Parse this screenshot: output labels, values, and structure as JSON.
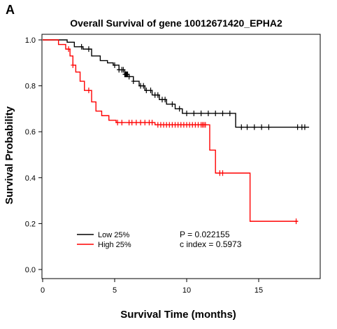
{
  "panel_label": "A",
  "chart_data": {
    "type": "line",
    "title": "Overall Survival of gene 10012671420_EPHA2",
    "xlabel": "Survival Time (months)",
    "ylabel": "Survival Probability",
    "xlim": [
      0,
      18.5
    ],
    "ylim": [
      0,
      1.0
    ],
    "x_ticks": [
      0,
      5,
      10,
      15
    ],
    "x_tick_labels": [
      "0",
      "5",
      "10",
      "15"
    ],
    "y_ticks": [
      0,
      0.2,
      0.4,
      0.6,
      0.8,
      1.0
    ],
    "y_tick_labels": [
      "0.0",
      "0.2",
      "0.4",
      "0.6",
      "0.8",
      "1.0"
    ],
    "grid": false,
    "legend_position": "bottom-left",
    "annotations": [
      "P = 0.022155",
      "c index = 0.5973"
    ],
    "series": [
      {
        "name": "Low 25%",
        "color": "#000000",
        "steps": [
          [
            0,
            1.0
          ],
          [
            1.7,
            0.99
          ],
          [
            2.2,
            0.97
          ],
          [
            2.8,
            0.96
          ],
          [
            3.4,
            0.93
          ],
          [
            4.0,
            0.91
          ],
          [
            4.5,
            0.9
          ],
          [
            4.9,
            0.89
          ],
          [
            5.3,
            0.87
          ],
          [
            5.7,
            0.85
          ],
          [
            6.0,
            0.84
          ],
          [
            6.3,
            0.82
          ],
          [
            6.7,
            0.8
          ],
          [
            7.1,
            0.78
          ],
          [
            7.6,
            0.76
          ],
          [
            8.1,
            0.74
          ],
          [
            8.6,
            0.72
          ],
          [
            9.2,
            0.7
          ],
          [
            9.7,
            0.68
          ],
          [
            13.4,
            0.62
          ],
          [
            18.5,
            0.62
          ]
        ],
        "censor_x": [
          2.7,
          3.2,
          5.0,
          5.3,
          5.5,
          5.6,
          5.7,
          5.75,
          5.8,
          5.85,
          5.9,
          6.0,
          6.3,
          6.8,
          7.0,
          7.2,
          7.5,
          7.8,
          8.0,
          8.3,
          8.5,
          9.0,
          9.5,
          10.0,
          10.5,
          11.0,
          11.5,
          12.0,
          12.5,
          13.0,
          13.8,
          14.2,
          14.7,
          15.2,
          15.7,
          17.7,
          18.0,
          18.2
        ]
      },
      {
        "name": "High 25%",
        "color": "#ff0000",
        "steps": [
          [
            0,
            1.0
          ],
          [
            1.1,
            0.98
          ],
          [
            1.6,
            0.96
          ],
          [
            1.9,
            0.93
          ],
          [
            2.1,
            0.89
          ],
          [
            2.3,
            0.86
          ],
          [
            2.6,
            0.82
          ],
          [
            2.9,
            0.78
          ],
          [
            3.4,
            0.73
          ],
          [
            3.7,
            0.69
          ],
          [
            4.1,
            0.67
          ],
          [
            4.6,
            0.65
          ],
          [
            5.1,
            0.64
          ],
          [
            7.8,
            0.63
          ],
          [
            11.6,
            0.52
          ],
          [
            12.0,
            0.42
          ],
          [
            14.4,
            0.21
          ],
          [
            17.7,
            0.21
          ]
        ],
        "censor_x": [
          1.8,
          2.1,
          3.2,
          5.2,
          5.5,
          6.0,
          6.2,
          6.5,
          6.8,
          7.1,
          7.4,
          7.6,
          8.0,
          8.2,
          8.4,
          8.6,
          8.8,
          9.0,
          9.2,
          9.4,
          9.6,
          9.8,
          10.0,
          10.2,
          10.4,
          10.6,
          10.8,
          11.0,
          11.1,
          11.2,
          11.3,
          12.3,
          12.5,
          17.6
        ]
      }
    ]
  }
}
